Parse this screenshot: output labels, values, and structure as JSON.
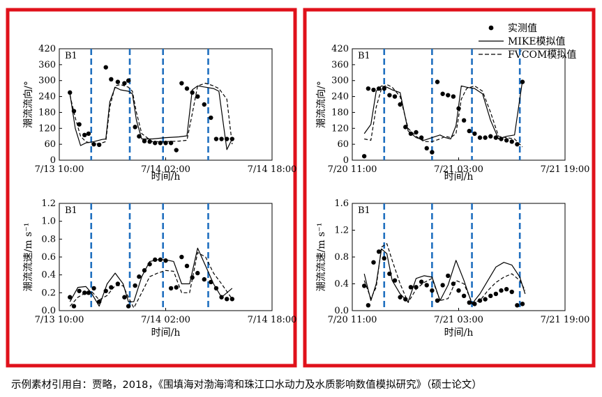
{
  "panels": [
    {
      "axis_label_x": "时间/h"
    },
    {
      "axis_label_x": "时间/h"
    }
  ],
  "legend": {
    "measured": "实测值",
    "mike": "MIKE模拟值",
    "fvcom": "FVCOM模拟值"
  },
  "caption": "示例素材引用自：贾略，2018，《围填海对渤海湾和珠江口水动力及水质影响数值模拟研究》（硕士论文）",
  "colors": {
    "frame": "#e0111b",
    "dashed_marker": "#1f6fbf",
    "series": "#000000"
  },
  "chart_data": [
    {
      "type": "scatter",
      "label": "B1",
      "xlabel": "时间/h",
      "ylabel": "潮流流向/°",
      "xlim": [
        0,
        8
      ],
      "x_ticks": [
        "7/13 10:00",
        "7/14 02:00",
        "7/14 18:00"
      ],
      "x_tick_pos": [
        0,
        4,
        8
      ],
      "ylim": [
        0,
        420
      ],
      "y_ticks": [
        0,
        60,
        120,
        180,
        240,
        300,
        360,
        420
      ],
      "markers": [
        1.2,
        2.65,
        3.9,
        5.6
      ],
      "series": [
        {
          "name": "实测值",
          "type": "scatter",
          "x": [
            0.4,
            0.55,
            0.75,
            0.95,
            1.1,
            1.3,
            1.5,
            1.75,
            1.95,
            2.2,
            2.45,
            2.6,
            2.85,
            3.0,
            3.2,
            3.4,
            3.6,
            3.8,
            4.0,
            4.2,
            4.4,
            4.6,
            4.8,
            5.0,
            5.2,
            5.45,
            5.7,
            5.9,
            6.1,
            6.3,
            6.5
          ],
          "y": [
            255,
            185,
            135,
            95,
            100,
            60,
            58,
            350,
            305,
            295,
            290,
            300,
            125,
            90,
            72,
            70,
            65,
            65,
            65,
            65,
            38,
            290,
            270,
            255,
            240,
            210,
            160,
            80,
            80,
            80,
            80
          ]
        },
        {
          "name": "MIKE模拟值",
          "type": "line",
          "x": [
            0.4,
            0.6,
            0.8,
            1.0,
            1.3,
            1.6,
            1.75,
            1.9,
            2.1,
            2.3,
            2.6,
            2.75,
            2.9,
            3.1,
            3.5,
            4.0,
            4.5,
            4.8,
            5.0,
            5.2,
            5.5,
            5.8,
            6.0,
            6.3,
            6.5
          ],
          "y": [
            250,
            120,
            55,
            65,
            70,
            78,
            80,
            220,
            275,
            265,
            260,
            250,
            150,
            80,
            80,
            85,
            88,
            92,
            265,
            280,
            275,
            270,
            260,
            40,
            80
          ]
        },
        {
          "name": "FVCOM模拟值",
          "type": "line",
          "x": [
            0.4,
            0.6,
            0.8,
            1.0,
            1.3,
            1.6,
            1.75,
            1.9,
            2.1,
            2.3,
            2.6,
            2.75,
            2.9,
            3.1,
            3.5,
            4.0,
            4.5,
            4.8,
            5.0,
            5.2,
            5.5,
            5.8,
            6.0,
            6.3,
            6.5
          ],
          "y": [
            245,
            160,
            90,
            70,
            60,
            65,
            70,
            200,
            280,
            285,
            275,
            260,
            180,
            100,
            70,
            70,
            72,
            75,
            175,
            280,
            290,
            280,
            270,
            230,
            60
          ]
        }
      ]
    },
    {
      "type": "scatter",
      "label": "B1",
      "xlabel": "时间/h",
      "ylabel": "潮流流速/m s⁻¹",
      "xlim": [
        0,
        8
      ],
      "x_ticks": [
        "7/13 10:00",
        "7/14 02:00",
        "7/14 18:00"
      ],
      "x_tick_pos": [
        0,
        4,
        8
      ],
      "ylim": [
        0,
        1.2
      ],
      "y_ticks": [
        0.0,
        0.2,
        0.4,
        0.6,
        0.8,
        1.0,
        1.2
      ],
      "markers": [
        1.2,
        2.65,
        3.9,
        5.6
      ],
      "series": [
        {
          "name": "实测值",
          "type": "scatter",
          "x": [
            0.4,
            0.55,
            0.75,
            0.95,
            1.1,
            1.3,
            1.5,
            1.75,
            1.95,
            2.2,
            2.45,
            2.6,
            2.85,
            3.0,
            3.2,
            3.4,
            3.6,
            3.8,
            4.0,
            4.2,
            4.4,
            4.6,
            4.8,
            5.0,
            5.2,
            5.45,
            5.7,
            5.9,
            6.1,
            6.3,
            6.5
          ],
          "y": [
            0.15,
            0.05,
            0.22,
            0.2,
            0.2,
            0.25,
            0.1,
            0.22,
            0.26,
            0.3,
            0.15,
            0.05,
            0.28,
            0.38,
            0.45,
            0.52,
            0.57,
            0.57,
            0.56,
            0.25,
            0.26,
            0.6,
            0.5,
            0.37,
            0.42,
            0.35,
            0.32,
            0.25,
            0.15,
            0.13,
            0.13
          ]
        },
        {
          "name": "MIKE模拟值",
          "type": "line",
          "x": [
            0.4,
            0.7,
            1.0,
            1.2,
            1.5,
            1.8,
            2.1,
            2.4,
            2.6,
            2.8,
            3.1,
            3.4,
            3.7,
            4.0,
            4.3,
            4.6,
            4.9,
            5.2,
            5.5,
            5.8,
            6.1,
            6.5
          ],
          "y": [
            0.1,
            0.26,
            0.27,
            0.2,
            0.05,
            0.3,
            0.42,
            0.3,
            0.1,
            0.1,
            0.38,
            0.55,
            0.57,
            0.57,
            0.55,
            0.3,
            0.3,
            0.7,
            0.5,
            0.3,
            0.15,
            0.25
          ]
        },
        {
          "name": "FVCOM模拟值",
          "type": "line",
          "x": [
            0.4,
            0.7,
            1.0,
            1.2,
            1.5,
            1.8,
            2.1,
            2.4,
            2.6,
            2.8,
            3.1,
            3.4,
            3.7,
            4.0,
            4.3,
            4.6,
            4.9,
            5.2,
            5.5,
            5.8,
            6.1,
            6.5
          ],
          "y": [
            0.05,
            0.15,
            0.2,
            0.22,
            0.12,
            0.17,
            0.28,
            0.28,
            0.15,
            0.03,
            0.2,
            0.38,
            0.42,
            0.45,
            0.44,
            0.2,
            0.2,
            0.65,
            0.6,
            0.42,
            0.3,
            0.13
          ]
        }
      ]
    },
    {
      "type": "scatter",
      "label": "B1",
      "xlabel": "时间/h",
      "ylabel": "潮流流向/°",
      "xlim": [
        0,
        8
      ],
      "x_ticks": [
        "7/20 11:00",
        "7/21 03:00",
        "7/21 19:00"
      ],
      "x_tick_pos": [
        0,
        4,
        8
      ],
      "ylim": [
        0,
        420
      ],
      "y_ticks": [
        0,
        60,
        120,
        180,
        240,
        300,
        360,
        420
      ],
      "markers": [
        1.2,
        3.0,
        4.5,
        6.3
      ],
      "series": [
        {
          "name": "实测值",
          "type": "scatter",
          "x": [
            0.45,
            0.6,
            0.8,
            1.0,
            1.2,
            1.4,
            1.6,
            1.8,
            2.0,
            2.2,
            2.4,
            2.6,
            2.8,
            3.0,
            3.2,
            3.4,
            3.6,
            3.8,
            4.0,
            4.2,
            4.4,
            4.6,
            4.8,
            5.0,
            5.2,
            5.4,
            5.6,
            5.8,
            6.0,
            6.2,
            6.4
          ],
          "y": [
            15,
            270,
            265,
            270,
            270,
            245,
            240,
            210,
            125,
            100,
            105,
            85,
            45,
            30,
            295,
            250,
            245,
            240,
            195,
            150,
            110,
            100,
            85,
            85,
            90,
            85,
            80,
            75,
            70,
            60,
            295
          ]
        },
        {
          "name": "MIKE模拟值",
          "type": "line",
          "x": [
            0.45,
            0.7,
            0.9,
            1.1,
            1.3,
            1.5,
            1.8,
            2.1,
            2.4,
            2.7,
            3.0,
            3.3,
            3.5,
            3.7,
            3.9,
            4.1,
            4.3,
            4.6,
            4.9,
            5.2,
            5.5,
            5.8,
            6.1,
            6.4
          ],
          "y": [
            100,
            135,
            260,
            280,
            275,
            265,
            255,
            110,
            85,
            75,
            85,
            95,
            85,
            80,
            130,
            280,
            275,
            270,
            250,
            150,
            80,
            90,
            95,
            300
          ]
        },
        {
          "name": "FVCOM模拟值",
          "type": "line",
          "x": [
            0.45,
            0.7,
            0.9,
            1.1,
            1.3,
            1.5,
            1.8,
            2.1,
            2.4,
            2.7,
            3.0,
            3.3,
            3.5,
            3.7,
            3.9,
            4.1,
            4.3,
            4.6,
            4.9,
            5.2,
            5.5,
            5.8,
            6.1,
            6.4
          ],
          "y": [
            80,
            75,
            200,
            270,
            285,
            275,
            240,
            120,
            90,
            70,
            70,
            80,
            90,
            85,
            100,
            230,
            270,
            280,
            260,
            180,
            90,
            85,
            80,
            50
          ]
        }
      ]
    },
    {
      "type": "scatter",
      "label": "B1",
      "xlabel": "时间/h",
      "ylabel": "潮流流速/m s⁻¹",
      "xlim": [
        0,
        8
      ],
      "x_ticks": [
        "7/20 11:00",
        "7/21 03:00",
        "7/21 19:00"
      ],
      "x_tick_pos": [
        0,
        4,
        8
      ],
      "ylim": [
        0,
        1.6
      ],
      "y_ticks": [
        0.0,
        0.4,
        0.8,
        1.2,
        1.6
      ],
      "markers": [
        1.2,
        3.0,
        4.5,
        6.3
      ],
      "series": [
        {
          "name": "实测值",
          "type": "scatter",
          "x": [
            0.45,
            0.6,
            0.8,
            1.0,
            1.2,
            1.4,
            1.6,
            1.8,
            2.0,
            2.2,
            2.4,
            2.6,
            2.8,
            3.0,
            3.2,
            3.4,
            3.6,
            3.8,
            4.0,
            4.2,
            4.4,
            4.6,
            4.8,
            5.0,
            5.2,
            5.4,
            5.6,
            5.8,
            6.0,
            6.2,
            6.4
          ],
          "y": [
            0.37,
            0.08,
            0.72,
            0.88,
            0.78,
            0.55,
            0.45,
            0.2,
            0.17,
            0.35,
            0.35,
            0.43,
            0.38,
            0.3,
            0.15,
            0.38,
            0.52,
            0.4,
            0.3,
            0.22,
            0.12,
            0.1,
            0.15,
            0.17,
            0.22,
            0.25,
            0.3,
            0.32,
            0.28,
            0.08,
            0.1
          ]
        },
        {
          "name": "MIKE模拟值",
          "type": "line",
          "x": [
            0.45,
            0.7,
            0.9,
            1.1,
            1.3,
            1.5,
            1.8,
            2.1,
            2.4,
            2.7,
            3.0,
            3.3,
            3.6,
            3.9,
            4.2,
            4.5,
            4.8,
            5.1,
            5.4,
            5.7,
            6.0,
            6.3,
            6.5
          ],
          "y": [
            0.55,
            0.15,
            0.4,
            0.92,
            0.85,
            0.45,
            0.25,
            0.13,
            0.48,
            0.52,
            0.5,
            0.15,
            0.38,
            0.75,
            0.45,
            0.1,
            0.25,
            0.45,
            0.65,
            0.72,
            0.68,
            0.5,
            0.25
          ]
        },
        {
          "name": "FVCOM模拟值",
          "type": "line",
          "x": [
            0.45,
            0.7,
            0.9,
            1.1,
            1.3,
            1.5,
            1.8,
            2.1,
            2.4,
            2.7,
            3.0,
            3.3,
            3.6,
            3.9,
            4.2,
            4.5,
            4.8,
            5.1,
            5.4,
            5.7,
            6.0,
            6.3,
            6.5
          ],
          "y": [
            0.45,
            0.18,
            0.35,
            0.95,
            1.0,
            0.75,
            0.4,
            0.12,
            0.32,
            0.42,
            0.48,
            0.15,
            0.18,
            0.45,
            0.4,
            0.12,
            0.15,
            0.3,
            0.42,
            0.5,
            0.55,
            0.45,
            0.3
          ]
        }
      ]
    }
  ]
}
